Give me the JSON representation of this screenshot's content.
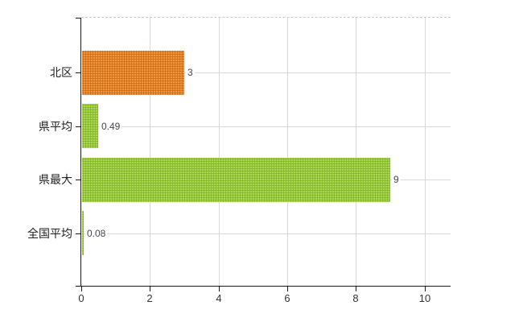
{
  "chart_data": {
    "type": "bar",
    "orientation": "horizontal",
    "title": "",
    "xlabel": "",
    "ylabel": "",
    "categories": [
      "北区",
      "県平均",
      "県最大",
      "全国平均"
    ],
    "values": [
      3,
      0.49,
      9,
      0.08
    ],
    "value_labels": [
      "3",
      "0.49",
      "9",
      "0.08"
    ],
    "bar_colors": [
      "orange",
      "green",
      "green",
      "green"
    ],
    "x_ticks": [
      0,
      2,
      4,
      6,
      8,
      10
    ],
    "x_tick_labels": [
      "0",
      "2",
      "4",
      "6",
      "8",
      "10"
    ],
    "xlim": [
      0,
      10.76
    ],
    "grid": true,
    "legend": "none"
  },
  "colors": {
    "orange": "#e8821e",
    "orange_dot": "#c96a12",
    "green": "#9ccb3b",
    "green_dot": "#7cb31c",
    "gridline": "#d9d9d9",
    "top_border": "#c9c9c9",
    "axis": "#1a1a1a",
    "tick_label": "#333333",
    "category_label": "#222222",
    "value_label": "#3f4650",
    "background": "#ffffff"
  }
}
